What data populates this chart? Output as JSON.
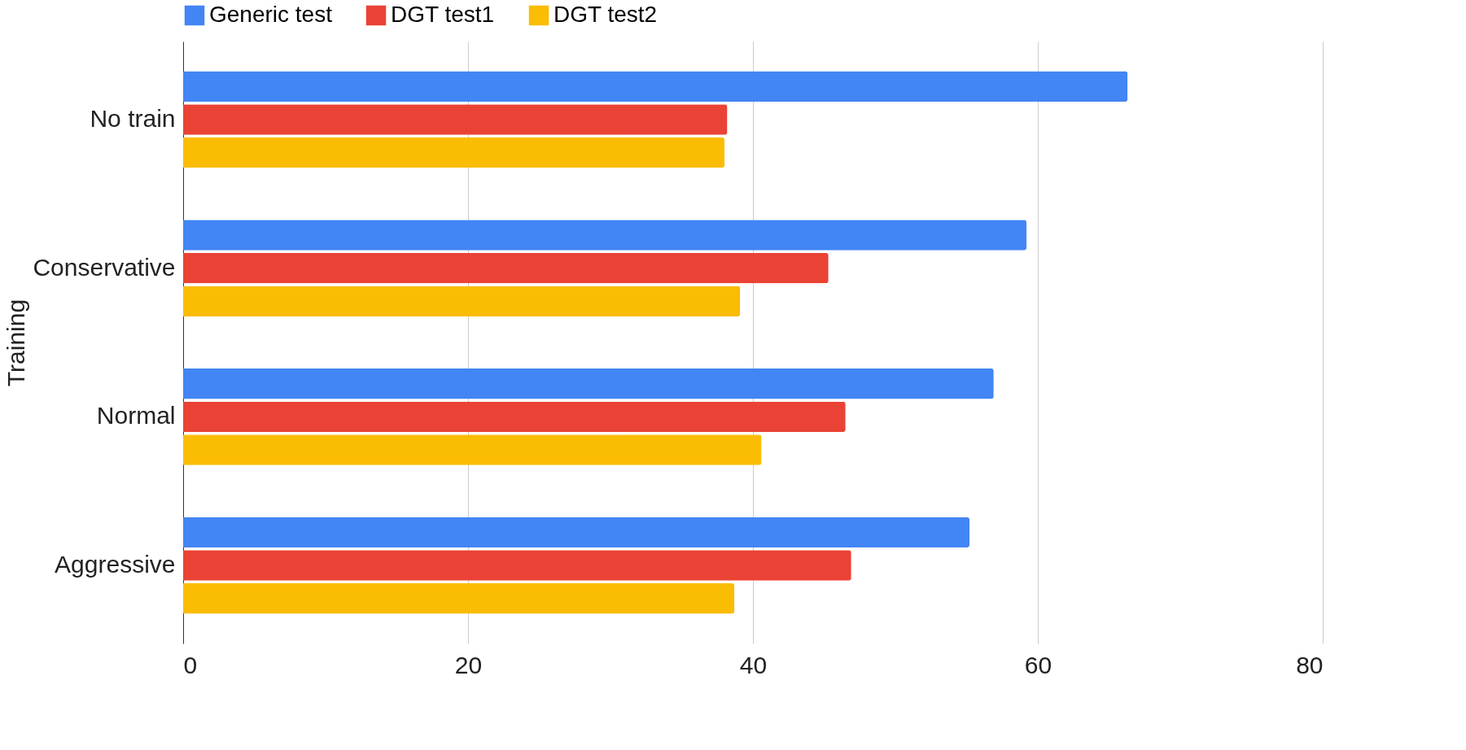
{
  "chart_data": {
    "type": "bar",
    "orientation": "horizontal",
    "ylabel": "Training",
    "categories": [
      "No train",
      "Conservative",
      "Normal",
      "Aggressive"
    ],
    "series": [
      {
        "name": "Generic test",
        "color": "#4285f4",
        "values": [
          66.3,
          59.2,
          56.9,
          55.2
        ]
      },
      {
        "name": "DGT test1",
        "color": "#ea4335",
        "values": [
          38.2,
          45.3,
          46.5,
          46.9
        ]
      },
      {
        "name": "DGT test2",
        "color": "#fbbc04",
        "values": [
          38.0,
          39.1,
          40.6,
          38.7
        ]
      }
    ],
    "xlim": [
      0,
      80
    ],
    "xticks": [
      0,
      20,
      40,
      60,
      80
    ],
    "grid": "x",
    "legend": "top"
  }
}
